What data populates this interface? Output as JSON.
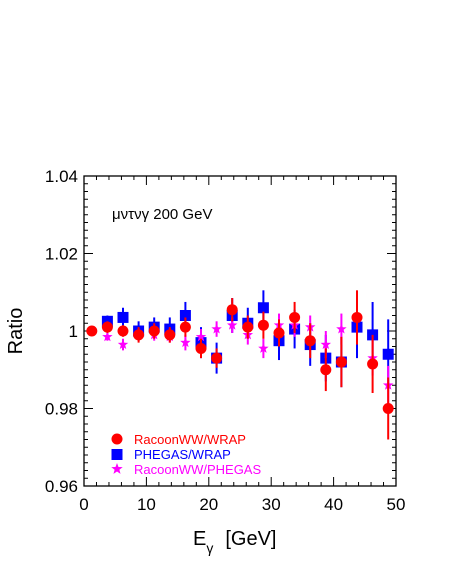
{
  "chart_data": {
    "type": "scatter",
    "title": "",
    "annotation": "μντνγ   200 GeV",
    "xlabel": "E",
    "xlabel_sub": "γ",
    "xlabel_unit": "[GeV]",
    "ylabel": "Ratio",
    "xlim": [
      0,
      50
    ],
    "ylim": [
      0.96,
      1.04
    ],
    "xticks": [
      0,
      10,
      20,
      30,
      40,
      50
    ],
    "yticks": [
      0.96,
      0.98,
      1,
      1.02,
      1.04
    ],
    "ytick_labels": [
      "0.96",
      "0.98",
      "1",
      "1.02",
      "1.04"
    ],
    "legend_position": "bottom-left",
    "grid": false,
    "series": [
      {
        "name": "RacoonWW/WRAP",
        "marker": "circle",
        "color": "#ff0000",
        "x": [
          1.25,
          3.75,
          6.25,
          8.75,
          11.25,
          13.75,
          16.25,
          18.75,
          21.25,
          23.75,
          26.25,
          28.75,
          31.25,
          33.75,
          36.25,
          38.75,
          41.25,
          43.75,
          46.25,
          48.75
        ],
        "y": [
          1.0,
          1.001,
          1.0,
          0.999,
          1.0,
          0.999,
          1.001,
          0.9955,
          0.993,
          1.0055,
          1.001,
          1.0015,
          0.9995,
          1.0035,
          0.9975,
          0.99,
          0.992,
          1.0035,
          0.9915,
          0.98
        ],
        "err": [
          0.0,
          0.0015,
          0.0015,
          0.002,
          0.002,
          0.002,
          0.0025,
          0.0025,
          0.0025,
          0.003,
          0.003,
          0.0035,
          0.0035,
          0.004,
          0.0045,
          0.0055,
          0.0065,
          0.007,
          0.0075,
          0.008
        ]
      },
      {
        "name": "PHEGAS/WRAP",
        "marker": "square",
        "color": "#0000ff",
        "x": [
          3.75,
          6.25,
          8.75,
          11.25,
          13.75,
          16.25,
          18.75,
          21.25,
          23.75,
          26.25,
          28.75,
          31.25,
          33.75,
          36.25,
          38.75,
          41.25,
          43.75,
          46.25,
          48.75
        ],
        "y": [
          1.0025,
          1.0035,
          1.0,
          1.001,
          1.0005,
          1.004,
          0.997,
          0.993,
          1.004,
          1.002,
          1.006,
          0.9975,
          1.0005,
          0.9965,
          0.993,
          0.992,
          1.001,
          0.999,
          0.994
        ],
        "err": [
          0.0015,
          0.0025,
          0.0025,
          0.0025,
          0.003,
          0.0035,
          0.004,
          0.004,
          0.0045,
          0.004,
          0.0045,
          0.005,
          0.005,
          0.0055,
          0.006,
          0.0065,
          0.008,
          0.0085,
          0.009
        ]
      },
      {
        "name": "RacoonWW/PHEGAS",
        "marker": "star",
        "color": "#ff00ff",
        "x": [
          3.75,
          6.25,
          8.75,
          11.25,
          13.75,
          16.25,
          18.75,
          21.25,
          23.75,
          26.25,
          28.75,
          31.25,
          33.75,
          36.25,
          38.75,
          41.25,
          43.75,
          46.25,
          48.75
        ],
        "y": [
          0.9985,
          0.9965,
          0.999,
          0.999,
          0.9985,
          0.997,
          0.9985,
          1.0005,
          1.0015,
          0.999,
          0.9955,
          1.0015,
          1.0015,
          1.001,
          0.9965,
          1.0005,
          1.0035,
          0.993,
          0.986
        ],
        "err": [
          0.001,
          0.0015,
          0.0015,
          0.0015,
          0.0015,
          0.002,
          0.002,
          0.002,
          0.002,
          0.0025,
          0.0025,
          0.003,
          0.003,
          0.003,
          0.0035,
          0.004,
          0.004,
          0.0045,
          0.005
        ]
      }
    ]
  }
}
